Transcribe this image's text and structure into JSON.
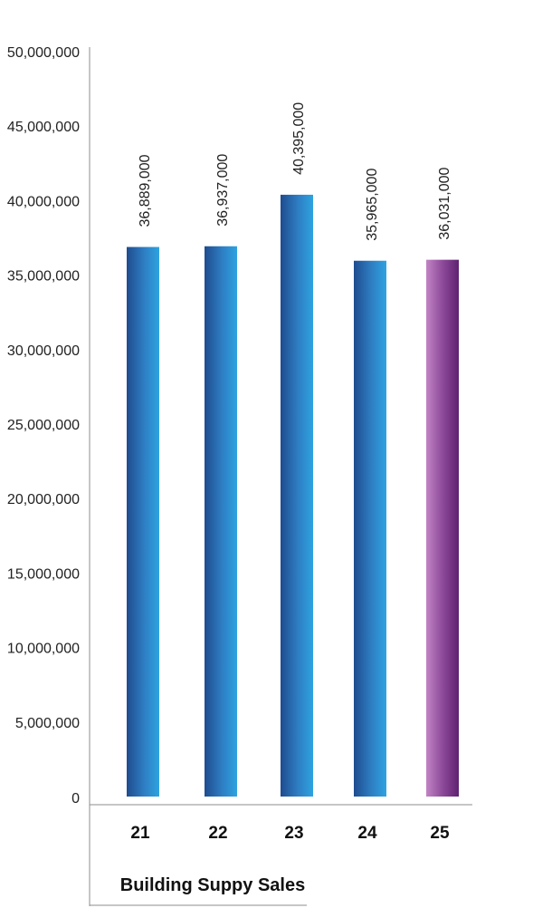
{
  "chart_data": {
    "type": "bar",
    "xlabel": "Building Suppy Sales",
    "ylabel": "",
    "ylim": [
      0,
      50000000
    ],
    "yticks": [
      0,
      5000000,
      10000000,
      15000000,
      20000000,
      25000000,
      30000000,
      35000000,
      40000000,
      45000000,
      50000000
    ],
    "ytick_labels": [
      "0",
      "5,000,000",
      "10,000,000",
      "15,000,000",
      "20,000,000",
      "25,000,000",
      "30,000,000",
      "35,000,000",
      "40,000,000",
      "45,000,000",
      "50,000,000"
    ],
    "categories": [
      "21",
      "22",
      "23",
      "24",
      "25"
    ],
    "values": [
      36889000,
      36937000,
      40395000,
      35965000,
      36031000
    ],
    "data_labels": [
      "36,889,000",
      "36,937,000",
      "40,395,000",
      "35,965,000",
      "36,031,000"
    ],
    "bar_styles": [
      "blue",
      "blue",
      "blue",
      "blue",
      "purple"
    ],
    "grid": false,
    "legend": "none",
    "colors": {
      "blue_dark": "#1f4c8f",
      "blue_light": "#2ea3e0",
      "purple_light": "#c184c4",
      "purple_dark": "#5e2270",
      "axis": "#8c8c8c"
    }
  }
}
